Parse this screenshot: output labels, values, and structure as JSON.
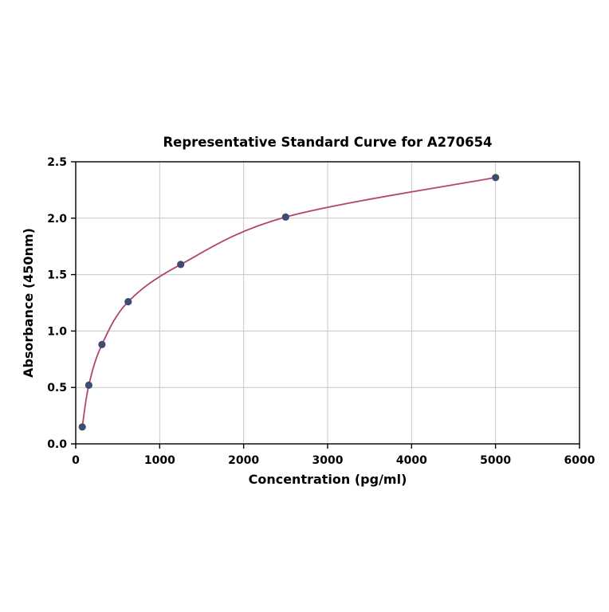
{
  "chart_data": {
    "type": "scatter",
    "title": "Representative Standard Curve for A270654",
    "xlabel": "Concentration (pg/ml)",
    "ylabel": "Absorbance (450nm)",
    "xlim": [
      0,
      6000
    ],
    "ylim": [
      0,
      2.5
    ],
    "xticks": [
      0,
      1000,
      2000,
      3000,
      4000,
      5000,
      6000
    ],
    "xticklabels": [
      "0",
      "1000",
      "2000",
      "3000",
      "4000",
      "5000",
      "6000"
    ],
    "yticks": [
      0,
      0.5,
      1.0,
      1.5,
      2.0,
      2.5
    ],
    "yticklabels": [
      "0.0",
      "0.5",
      "1.0",
      "1.5",
      "2.0",
      "2.5"
    ],
    "grid": true,
    "legend": "none",
    "series": [
      {
        "name": "standard-curve",
        "x": [
          78,
          156,
          312,
          625,
          1250,
          2500,
          5000
        ],
        "y": [
          0.15,
          0.52,
          0.88,
          1.26,
          1.59,
          2.01,
          2.36
        ]
      }
    ],
    "point_color": "#3d4d71",
    "curve_color": "#b3446c",
    "grid_color": "#c6c6c6",
    "axis_color": "#000000"
  }
}
